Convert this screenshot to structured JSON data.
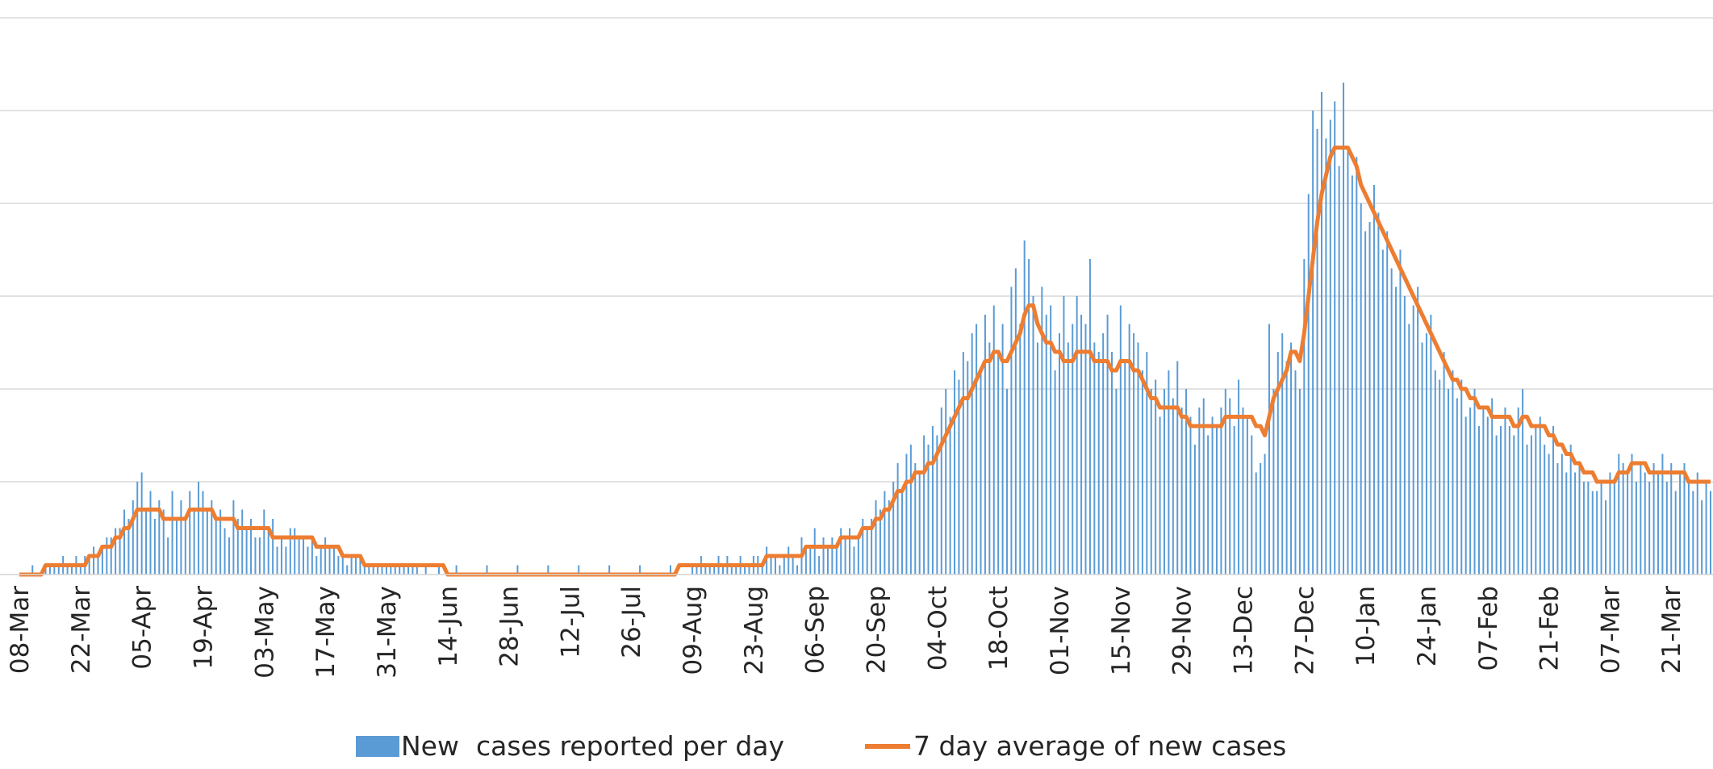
{
  "chart_data": {
    "type": "bar",
    "categories": [
      "08-Mar",
      null,
      null,
      null,
      null,
      null,
      null,
      null,
      null,
      null,
      null,
      null,
      null,
      null,
      "22-Mar",
      null,
      null,
      null,
      null,
      null,
      null,
      null,
      null,
      null,
      null,
      null,
      null,
      null,
      "05-Apr",
      null,
      null,
      null,
      null,
      null,
      null,
      null,
      null,
      null,
      null,
      null,
      null,
      null,
      "19-Apr",
      null,
      null,
      null,
      null,
      null,
      null,
      null,
      null,
      null,
      null,
      null,
      null,
      null,
      "03-May",
      null,
      null,
      null,
      null,
      null,
      null,
      null,
      null,
      null,
      null,
      null,
      null,
      null,
      "17-May",
      null,
      null,
      null,
      null,
      null,
      null,
      null,
      null,
      null,
      null,
      null,
      null,
      null,
      "31-May",
      null,
      null,
      null,
      null,
      null,
      null,
      null,
      null,
      null,
      null,
      null,
      null,
      null,
      "14-Jun",
      null,
      null,
      null,
      null,
      null,
      null,
      null,
      null,
      null,
      null,
      null,
      null,
      null,
      "28-Jun",
      null,
      null,
      null,
      null,
      null,
      null,
      null,
      null,
      null,
      null,
      null,
      null,
      null,
      "12-Jul",
      null,
      null,
      null,
      null,
      null,
      null,
      null,
      null,
      null,
      null,
      null,
      null,
      null,
      "26-Jul",
      null,
      null,
      null,
      null,
      null,
      null,
      null,
      null,
      null,
      null,
      null,
      null,
      null,
      "09-Aug",
      null,
      null,
      null,
      null,
      null,
      null,
      null,
      null,
      null,
      null,
      null,
      null,
      null,
      "23-Aug",
      null,
      null,
      null,
      null,
      null,
      null,
      null,
      null,
      null,
      null,
      null,
      null,
      null,
      "06-Sep",
      null,
      null,
      null,
      null,
      null,
      null,
      null,
      null,
      null,
      null,
      null,
      null,
      null,
      "20-Sep",
      null,
      null,
      null,
      null,
      null,
      null,
      null,
      null,
      null,
      null,
      null,
      null,
      null,
      "04-Oct",
      null,
      null,
      null,
      null,
      null,
      null,
      null,
      null,
      null,
      null,
      null,
      null,
      null,
      "18-Oct",
      null,
      null,
      null,
      null,
      null,
      null,
      null,
      null,
      null,
      null,
      null,
      null,
      null,
      "01-Nov",
      null,
      null,
      null,
      null,
      null,
      null,
      null,
      null,
      null,
      null,
      null,
      null,
      null,
      "15-Nov",
      null,
      null,
      null,
      null,
      null,
      null,
      null,
      null,
      null,
      null,
      null,
      null,
      null,
      "29-Nov",
      null,
      null,
      null,
      null,
      null,
      null,
      null,
      null,
      null,
      null,
      null,
      null,
      null,
      "13-Dec",
      null,
      null,
      null,
      null,
      null,
      null,
      null,
      null,
      null,
      null,
      null,
      null,
      null,
      "27-Dec",
      null,
      null,
      null,
      null,
      null,
      null,
      null,
      null,
      null,
      null,
      null,
      null,
      null,
      "10-Jan",
      null,
      null,
      null,
      null,
      null,
      null,
      null,
      null,
      null,
      null,
      null,
      null,
      null,
      "24-Jan",
      null,
      null,
      null,
      null,
      null,
      null,
      null,
      null,
      null,
      null,
      null,
      null,
      null,
      "07-Feb",
      null,
      null,
      null,
      null,
      null,
      null,
      null,
      null,
      null,
      null,
      null,
      null,
      null,
      "21-Feb",
      null,
      null,
      null,
      null,
      null,
      null,
      null,
      null,
      null,
      null,
      null,
      null,
      null,
      "07-Mar",
      null,
      null,
      null,
      null,
      null,
      null,
      null,
      null,
      null,
      null,
      null,
      null,
      null,
      "21-Mar",
      null,
      null,
      null,
      null,
      null,
      null,
      null,
      null,
      null
    ],
    "series": [
      {
        "name": "New  cases reported per day",
        "type": "bar",
        "color": "#5b9bd5",
        "values": [
          0,
          0,
          0,
          1,
          0,
          0,
          1,
          1,
          1,
          1,
          2,
          1,
          1,
          2,
          1,
          2,
          2,
          3,
          2,
          3,
          4,
          4,
          5,
          5,
          7,
          6,
          8,
          10,
          11,
          7,
          9,
          6,
          8,
          7,
          4,
          9,
          6,
          8,
          6,
          9,
          7,
          10,
          9,
          7,
          8,
          6,
          7,
          5,
          4,
          8,
          6,
          7,
          5,
          6,
          4,
          4,
          7,
          5,
          6,
          3,
          4,
          3,
          5,
          5,
          4,
          4,
          3,
          4,
          2,
          3,
          4,
          3,
          3,
          2,
          2,
          1,
          2,
          2,
          2,
          1,
          1,
          1,
          1,
          1,
          1,
          1,
          1,
          1,
          1,
          1,
          1,
          1,
          0,
          1,
          0,
          0,
          1,
          0,
          0,
          0,
          1,
          0,
          0,
          0,
          0,
          0,
          0,
          1,
          0,
          0,
          0,
          0,
          0,
          0,
          1,
          0,
          0,
          0,
          0,
          0,
          0,
          1,
          0,
          0,
          0,
          0,
          0,
          0,
          1,
          0,
          0,
          0,
          0,
          0,
          0,
          1,
          0,
          0,
          0,
          0,
          0,
          0,
          1,
          0,
          0,
          0,
          0,
          0,
          0,
          1,
          0,
          0,
          0,
          0,
          1,
          1,
          2,
          1,
          1,
          1,
          2,
          1,
          2,
          1,
          1,
          2,
          1,
          1,
          2,
          2,
          1,
          3,
          2,
          2,
          1,
          2,
          3,
          2,
          1,
          4,
          3,
          3,
          5,
          2,
          4,
          3,
          4,
          3,
          5,
          4,
          5,
          3,
          4,
          6,
          5,
          6,
          8,
          7,
          9,
          8,
          10,
          12,
          9,
          13,
          14,
          12,
          11,
          15,
          14,
          16,
          15,
          18,
          20,
          17,
          22,
          21,
          24,
          23,
          26,
          27,
          22,
          28,
          25,
          29,
          24,
          27,
          20,
          31,
          33,
          27,
          36,
          34,
          30,
          25,
          31,
          28,
          29,
          22,
          26,
          30,
          25,
          27,
          30,
          28,
          27,
          34,
          25,
          24,
          26,
          28,
          24,
          20,
          29,
          23,
          27,
          26,
          25,
          22,
          24,
          20,
          21,
          17,
          20,
          22,
          19,
          23,
          18,
          20,
          17,
          14,
          18,
          19,
          15,
          17,
          16,
          18,
          20,
          19,
          16,
          21,
          18,
          17,
          15,
          11,
          12,
          13,
          27,
          20,
          24,
          26,
          23,
          25,
          22,
          20,
          34,
          41,
          50,
          48,
          52,
          47,
          49,
          51,
          44,
          53,
          46,
          43,
          45,
          40,
          37,
          38,
          42,
          39,
          35,
          37,
          33,
          31,
          35,
          30,
          27,
          29,
          31,
          25,
          26,
          28,
          22,
          21,
          24,
          20,
          22,
          19,
          21,
          17,
          18,
          20,
          16,
          18,
          17,
          19,
          15,
          16,
          18,
          16,
          15,
          18,
          20,
          14,
          15,
          16,
          17,
          14,
          13,
          16,
          12,
          13,
          11,
          14,
          11,
          12,
          10,
          10,
          9,
          9,
          10,
          8,
          11,
          10,
          13,
          12,
          11,
          13,
          10,
          12,
          11,
          10,
          12,
          11,
          13,
          10,
          12,
          9,
          11,
          12,
          10,
          9,
          11,
          8,
          10,
          9
        ]
      },
      {
        "name": "7 day average of new cases",
        "type": "line",
        "color": "#ed7d31",
        "values": [
          0,
          0,
          0,
          0,
          0,
          0,
          1,
          1,
          1,
          1,
          1,
          1,
          1,
          1,
          1,
          1,
          2,
          2,
          2,
          3,
          3,
          3,
          4,
          4,
          5,
          5,
          6,
          7,
          7,
          7,
          7,
          7,
          7,
          6,
          6,
          6,
          6,
          6,
          6,
          7,
          7,
          7,
          7,
          7,
          7,
          6,
          6,
          6,
          6,
          6,
          5,
          5,
          5,
          5,
          5,
          5,
          5,
          5,
          4,
          4,
          4,
          4,
          4,
          4,
          4,
          4,
          4,
          4,
          3,
          3,
          3,
          3,
          3,
          3,
          2,
          2,
          2,
          2,
          2,
          1,
          1,
          1,
          1,
          1,
          1,
          1,
          1,
          1,
          1,
          1,
          1,
          1,
          1,
          1,
          1,
          1,
          1,
          1,
          0,
          0,
          0,
          0,
          0,
          0,
          0,
          0,
          0,
          0,
          0,
          0,
          0,
          0,
          0,
          0,
          0,
          0,
          0,
          0,
          0,
          0,
          0,
          0,
          0,
          0,
          0,
          0,
          0,
          0,
          0,
          0,
          0,
          0,
          0,
          0,
          0,
          0,
          0,
          0,
          0,
          0,
          0,
          0,
          0,
          0,
          0,
          0,
          0,
          0,
          0,
          0,
          0,
          1,
          1,
          1,
          1,
          1,
          1,
          1,
          1,
          1,
          1,
          1,
          1,
          1,
          1,
          1,
          1,
          1,
          1,
          1,
          1,
          2,
          2,
          2,
          2,
          2,
          2,
          2,
          2,
          2,
          3,
          3,
          3,
          3,
          3,
          3,
          3,
          3,
          4,
          4,
          4,
          4,
          4,
          5,
          5,
          5,
          6,
          6,
          7,
          7,
          8,
          9,
          9,
          10,
          10,
          11,
          11,
          11,
          12,
          12,
          13,
          14,
          15,
          16,
          17,
          18,
          19,
          19,
          20,
          21,
          22,
          23,
          23,
          24,
          24,
          23,
          23,
          24,
          25,
          26,
          28,
          29,
          29,
          27,
          26,
          25,
          25,
          24,
          24,
          23,
          23,
          23,
          24,
          24,
          24,
          24,
          23,
          23,
          23,
          23,
          22,
          22,
          23,
          23,
          23,
          22,
          22,
          21,
          20,
          19,
          19,
          18,
          18,
          18,
          18,
          18,
          17,
          17,
          16,
          16,
          16,
          16,
          16,
          16,
          16,
          16,
          17,
          17,
          17,
          17,
          17,
          17,
          17,
          16,
          16,
          15,
          17,
          19,
          20,
          21,
          22,
          24,
          24,
          23,
          26,
          30,
          34,
          38,
          41,
          43,
          45,
          46,
          46,
          46,
          46,
          45,
          44,
          42,
          41,
          40,
          39,
          38,
          37,
          36,
          35,
          34,
          33,
          32,
          31,
          30,
          29,
          28,
          27,
          26,
          25,
          24,
          23,
          22,
          21,
          21,
          20,
          20,
          19,
          19,
          18,
          18,
          18,
          17,
          17,
          17,
          17,
          17,
          16,
          16,
          17,
          17,
          16,
          16,
          16,
          16,
          15,
          15,
          14,
          14,
          13,
          13,
          12,
          12,
          11,
          11,
          11,
          10,
          10,
          10,
          10,
          10,
          11,
          11,
          11,
          12,
          12,
          12,
          12,
          11,
          11,
          11,
          11,
          11,
          11,
          11,
          11,
          11,
          10,
          10,
          10,
          10,
          10,
          10
        ]
      }
    ],
    "ylim": [
      0,
      60
    ],
    "yticks": [
      0,
      10,
      20,
      30,
      40,
      50,
      60
    ],
    "grid": true,
    "legend": "bottom"
  }
}
